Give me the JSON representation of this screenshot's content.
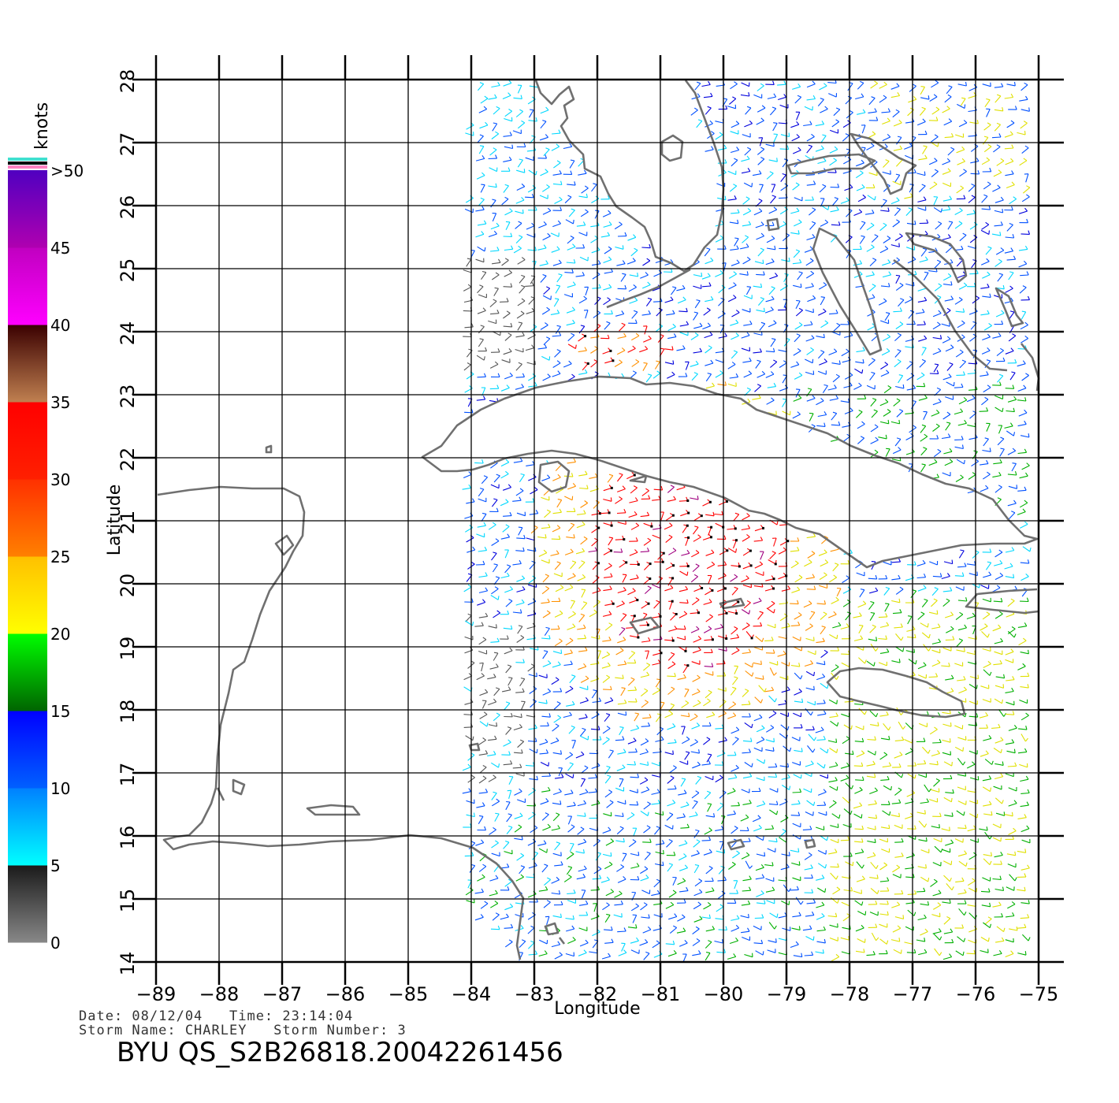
{
  "colorbar": {
    "unit_label": "knots",
    "bands": [
      {
        "from": 0,
        "to": 5,
        "colors": [
          "#888888",
          "#1a1a1a"
        ]
      },
      {
        "from": 5,
        "to": 10,
        "colors": [
          "#00ffff",
          "#0080ff"
        ]
      },
      {
        "from": 10,
        "to": 15,
        "colors": [
          "#0060ff",
          "#0000ff"
        ]
      },
      {
        "from": 15,
        "to": 20,
        "colors": [
          "#006400",
          "#00ff00"
        ]
      },
      {
        "from": 20,
        "to": 25,
        "colors": [
          "#ffff00",
          "#ffc000"
        ]
      },
      {
        "from": 25,
        "to": 30,
        "colors": [
          "#ff8000",
          "#ff3000"
        ]
      },
      {
        "from": 30,
        "to": 35,
        "colors": [
          "#ff2000",
          "#ff0000"
        ]
      },
      {
        "from": 35,
        "to": 40,
        "colors": [
          "#c08050",
          "#3a0000"
        ]
      },
      {
        "from": 40,
        "to": 45,
        "colors": [
          "#ff00ff",
          "#c000c0"
        ]
      },
      {
        "from": 45,
        "to": 50,
        "colors": [
          "#b000b0",
          "#5000c0"
        ]
      }
    ],
    "tick_labels": [
      "0",
      "5",
      "10",
      "15",
      "20",
      "25",
      "30",
      "35",
      "40",
      "45",
      ">50"
    ],
    "top_marker_colors": [
      "#40e0d0",
      "#000000",
      "#ff80c0"
    ]
  },
  "axes": {
    "x_label": "Longitude",
    "y_label": "Latitude",
    "x_ticks": [
      "−89",
      "−88",
      "−87",
      "−86",
      "−85",
      "−84",
      "−83",
      "−82",
      "−81",
      "−80",
      "−79",
      "−78",
      "−77",
      "−76",
      "−75"
    ],
    "y_ticks": [
      "14",
      "15",
      "16",
      "17",
      "18",
      "19",
      "20",
      "21",
      "22",
      "23",
      "24",
      "25",
      "26",
      "27",
      "28"
    ],
    "lon_range": [
      -89,
      -75
    ],
    "lat_range": [
      14,
      28
    ],
    "grid": true
  },
  "info": {
    "date_line": "Date: 08/12/04   Time: 23:14:04",
    "storm_line": "Storm Name: CHARLEY   Storm Number: 3",
    "product_id": "BYU QS_S2B26818.20042261456"
  },
  "palette": {
    "coast": "#707070",
    "calm": "#555555",
    "light": "#00d8ff",
    "mid": "#0050ff",
    "deep": "#0000dd",
    "moderate": "#00b000",
    "fresh": "#e0e000",
    "strong": "#ff9000",
    "gale": "#ff0000",
    "storm": "#a00080"
  }
}
